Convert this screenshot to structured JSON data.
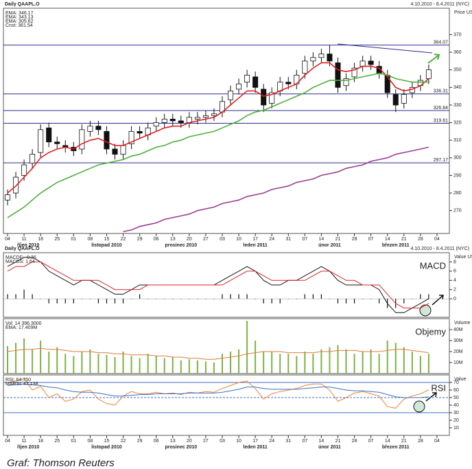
{
  "caption": "Graf: Thomson Reuters",
  "chart_data": [
    {
      "type": "candlestick",
      "title": "Daily QAAPL.O",
      "subtitle": "4.10.2010 - 8.4.2011 (NYC)",
      "y_label": "Price USD",
      "xlim": [
        -0.5,
        53.5
      ],
      "xticks": [
        {
          "value": 0,
          "label": "04"
        },
        {
          "value": 2,
          "label": "11"
        },
        {
          "value": 4,
          "label": "18"
        },
        {
          "value": 6,
          "label": "25"
        },
        {
          "value": 8,
          "label": "01"
        },
        {
          "value": 10,
          "label": "08"
        },
        {
          "value": 12,
          "label": "15"
        },
        {
          "value": 14,
          "label": "22"
        },
        {
          "value": 16,
          "label": "29"
        },
        {
          "value": 18,
          "label": "06"
        },
        {
          "value": 20,
          "label": "13"
        },
        {
          "value": 22,
          "label": "20"
        },
        {
          "value": 24,
          "label": "27"
        },
        {
          "value": 26,
          "label": "03"
        },
        {
          "value": 28,
          "label": "10"
        },
        {
          "value": 30,
          "label": "17"
        },
        {
          "value": 32,
          "label": "24"
        },
        {
          "value": 34,
          "label": "31"
        },
        {
          "value": 36,
          "label": "07"
        },
        {
          "value": 38,
          "label": "14"
        },
        {
          "value": 40,
          "label": "21"
        },
        {
          "value": 42,
          "label": "28"
        },
        {
          "value": 44,
          "label": "07"
        },
        {
          "value": 46,
          "label": "14"
        },
        {
          "value": 48,
          "label": "21"
        },
        {
          "value": 50,
          "label": "28"
        },
        {
          "value": 52,
          "label": "04"
        }
      ],
      "month_labels": [
        {
          "value": 2.5,
          "label": "říjen 2010"
        },
        {
          "value": 12,
          "label": "listopad 2010"
        },
        {
          "value": 21,
          "label": "prosinec 2010"
        },
        {
          "value": 30,
          "label": "leden 2011"
        },
        {
          "value": 39,
          "label": "únor 2011"
        },
        {
          "value": 47,
          "label": "březen 2011"
        }
      ],
      "ylim": [
        257,
        385
      ],
      "yticks": [
        270,
        280,
        290,
        300,
        310,
        320,
        330,
        340,
        350,
        360,
        370
      ],
      "hlines": [
        364.07,
        336.31,
        326.84,
        319.61,
        297.17
      ],
      "hline_color": "#2c2c8c",
      "open": [
        276,
        280,
        290,
        297,
        303,
        317,
        309,
        307,
        306,
        305,
        315,
        318,
        315,
        305,
        302,
        308,
        315,
        313,
        318,
        320,
        322,
        321,
        320,
        322,
        323,
        324,
        326,
        333,
        339,
        343,
        346,
        339,
        331,
        338,
        343,
        342,
        348,
        355,
        357,
        359,
        354,
        341,
        346,
        352,
        355,
        352,
        347,
        336,
        331,
        337,
        341,
        345
      ],
      "high": [
        282,
        292,
        299,
        305,
        319,
        320,
        312,
        310,
        309,
        319,
        321,
        321,
        318,
        308,
        310,
        318,
        318,
        320,
        323,
        325,
        325,
        324,
        326,
        326,
        327,
        328,
        335,
        341,
        345,
        350,
        349,
        342,
        340,
        346,
        346,
        350,
        358,
        360,
        362,
        364,
        357,
        348,
        354,
        358,
        358,
        355,
        350,
        339,
        339,
        343,
        347,
        353
      ],
      "low": [
        273,
        277,
        287,
        294,
        300,
        306,
        305,
        303,
        301,
        302,
        312,
        313,
        302,
        299,
        299,
        305,
        311,
        310,
        315,
        317,
        318,
        317,
        317,
        319,
        320,
        321,
        323,
        330,
        336,
        340,
        337,
        326,
        328,
        335,
        339,
        339,
        345,
        352,
        354,
        352,
        337,
        338,
        343,
        349,
        350,
        345,
        334,
        326,
        328,
        334,
        338,
        342
      ],
      "close": [
        279,
        289,
        296,
        302,
        316,
        309,
        308,
        306,
        304,
        316,
        318,
        316,
        305,
        302,
        307,
        315,
        314,
        317,
        320,
        322,
        321,
        320,
        323,
        323,
        324,
        325,
        332,
        338,
        342,
        347,
        340,
        330,
        337,
        343,
        342,
        347,
        355,
        357,
        359,
        355,
        340,
        345,
        351,
        355,
        353,
        348,
        337,
        330,
        336,
        340,
        344,
        350
      ],
      "series": [
        {
          "name": "EMA: 346.17",
          "color": "#e02020",
          "values": [
            280,
            284,
            289,
            294,
            300,
            303,
            305,
            306,
            305,
            308,
            310,
            311,
            309,
            307,
            307,
            309,
            311,
            313,
            315,
            317,
            318,
            318,
            320,
            321,
            322,
            323,
            326,
            330,
            334,
            338,
            338,
            335,
            336,
            338,
            340,
            342,
            347,
            351,
            354,
            354,
            350,
            349,
            350,
            352,
            352,
            351,
            346,
            340,
            338,
            339,
            341,
            345
          ]
        },
        {
          "name": "EMA: 343.13",
          "color": "#4caf3c",
          "values": [
            266,
            269,
            272,
            276,
            280,
            283,
            286,
            288,
            290,
            292,
            294,
            296,
            297,
            298,
            299,
            301,
            302,
            304,
            306,
            307,
            309,
            310,
            312,
            313,
            314,
            315,
            317,
            319,
            321,
            324,
            326,
            327,
            329,
            331,
            333,
            335,
            337,
            340,
            342,
            344,
            344,
            344,
            345,
            346,
            347,
            348,
            347,
            345,
            344,
            343,
            343,
            343
          ]
        },
        {
          "name": "EMA: 305.62",
          "color": "#9b3d8f",
          "values": [
            null,
            null,
            null,
            null,
            null,
            null,
            null,
            null,
            null,
            null,
            null,
            null,
            null,
            null,
            258,
            259,
            261,
            262,
            263,
            265,
            266,
            267,
            268,
            270,
            271,
            272,
            274,
            275,
            276,
            278,
            279,
            280,
            282,
            283,
            284,
            286,
            287,
            288,
            290,
            291,
            292,
            294,
            295,
            296,
            298,
            299,
            300,
            302,
            303,
            304,
            305,
            306
          ]
        }
      ],
      "constant": {
        "name": "Cnst: 361.54",
        "color": "#333333"
      }
    },
    {
      "type": "line",
      "title": "Daily QAAPL.O",
      "subtitle": "4.10.2010 - 8.4.2011 (NYC)",
      "y_label": "Value USD",
      "annotation": "MACD",
      "ylim": [
        -4,
        10
      ],
      "yticks": [
        0,
        2,
        4,
        6,
        8
      ],
      "series": [
        {
          "name": "MACDF: -0.36",
          "color": "#111111",
          "values": [
            7,
            8,
            9,
            9,
            8,
            6,
            5,
            4,
            3,
            4,
            4,
            3,
            2,
            1,
            1,
            2,
            3,
            3,
            3,
            3,
            3,
            3,
            3,
            3,
            3,
            3,
            4,
            5,
            6,
            7,
            6,
            4,
            3,
            3,
            4,
            4,
            5,
            6,
            7,
            6,
            4,
            3,
            3,
            3,
            3,
            2,
            -1,
            -3,
            -3,
            -2,
            -1,
            0
          ]
        },
        {
          "name": "MACDS: 1.64",
          "color": "#e02020",
          "values": [
            6,
            7,
            7,
            8,
            8,
            7,
            6,
            5,
            4,
            4,
            4,
            4,
            3,
            2,
            2,
            2,
            2,
            3,
            3,
            3,
            3,
            3,
            3,
            3,
            3,
            3,
            3,
            4,
            5,
            6,
            6,
            5,
            4,
            4,
            4,
            4,
            4,
            5,
            6,
            6,
            5,
            4,
            4,
            3,
            3,
            3,
            1,
            -1,
            -2,
            -2,
            -2,
            -1
          ]
        }
      ],
      "histogram": {
        "color": "#111111",
        "values": [
          1,
          1,
          2,
          1,
          0,
          -1,
          -1,
          -1,
          -1,
          0,
          0,
          -1,
          -1,
          -1,
          -1,
          0,
          1,
          0,
          0,
          0,
          0,
          0,
          0,
          0,
          0,
          0,
          1,
          1,
          1,
          1,
          0,
          -1,
          -1,
          -1,
          0,
          0,
          1,
          1,
          1,
          0,
          -1,
          -1,
          -1,
          0,
          0,
          -1,
          -2,
          -2,
          -1,
          0,
          1,
          1
        ]
      }
    },
    {
      "type": "bar",
      "y_label": "Volume",
      "annotation": "Objemy",
      "ylim": [
        0,
        50
      ],
      "yticks": [
        {
          "value": 10,
          "label": "10M"
        },
        {
          "value": 20,
          "label": "20M"
        },
        {
          "value": 30,
          "label": "30M"
        },
        {
          "value": 40,
          "label": "40M"
        }
      ],
      "series": [
        {
          "name": "Vol: 14 396.3000",
          "color": "#7cb342",
          "kind": "bar",
          "values": [
            25,
            28,
            32,
            22,
            30,
            20,
            24,
            18,
            16,
            20,
            22,
            18,
            17,
            15,
            20,
            16,
            14,
            18,
            16,
            14,
            15,
            12,
            13,
            12,
            11,
            10,
            18,
            20,
            22,
            48,
            30,
            20,
            20,
            18,
            18,
            16,
            20,
            18,
            22,
            24,
            26,
            22,
            18,
            20,
            22,
            18,
            30,
            28,
            24,
            20,
            16,
            18
          ]
        },
        {
          "name": "EMA: 17.409M",
          "color": "#e07b39",
          "values": [
            20,
            21,
            22,
            22,
            23,
            22,
            22,
            21,
            20,
            20,
            20,
            19,
            19,
            18,
            18,
            17,
            17,
            17,
            16,
            16,
            15,
            15,
            14,
            14,
            13,
            13,
            14,
            15,
            16,
            18,
            19,
            20,
            20,
            20,
            19,
            19,
            19,
            19,
            20,
            20,
            21,
            21,
            21,
            20,
            20,
            20,
            21,
            22,
            22,
            21,
            20,
            19
          ]
        }
      ]
    },
    {
      "type": "line",
      "y_label": "Value",
      "annotation": "RSI",
      "ylim": [
        0,
        80
      ],
      "yticks": [
        10,
        20,
        30,
        40,
        50,
        60,
        70
      ],
      "hlines": [
        70,
        50,
        30
      ],
      "hline_color": "#3a6fc4",
      "series": [
        {
          "name": "RSI: 64.750",
          "color": "#f08030",
          "values": [
            70,
            72,
            75,
            60,
            65,
            50,
            55,
            45,
            48,
            58,
            60,
            48,
            42,
            40,
            52,
            58,
            55,
            55,
            57,
            55,
            56,
            54,
            57,
            56,
            58,
            57,
            62,
            66,
            70,
            72,
            62,
            48,
            55,
            58,
            60,
            62,
            66,
            68,
            68,
            60,
            45,
            50,
            56,
            58,
            55,
            52,
            38,
            36,
            48,
            52,
            55,
            60
          ]
        },
        {
          "name": "MARSI: 47.138",
          "color": "#3a6fc4",
          "values": [
            66,
            67,
            68,
            67,
            66,
            64,
            63,
            60,
            58,
            57,
            57,
            56,
            54,
            52,
            52,
            53,
            54,
            54,
            55,
            55,
            55,
            55,
            56,
            56,
            56,
            56,
            57,
            59,
            61,
            64,
            64,
            62,
            61,
            61,
            61,
            61,
            62,
            63,
            64,
            64,
            62,
            60,
            59,
            59,
            58,
            57,
            54,
            51,
            50,
            50,
            50,
            51
          ]
        }
      ]
    }
  ]
}
